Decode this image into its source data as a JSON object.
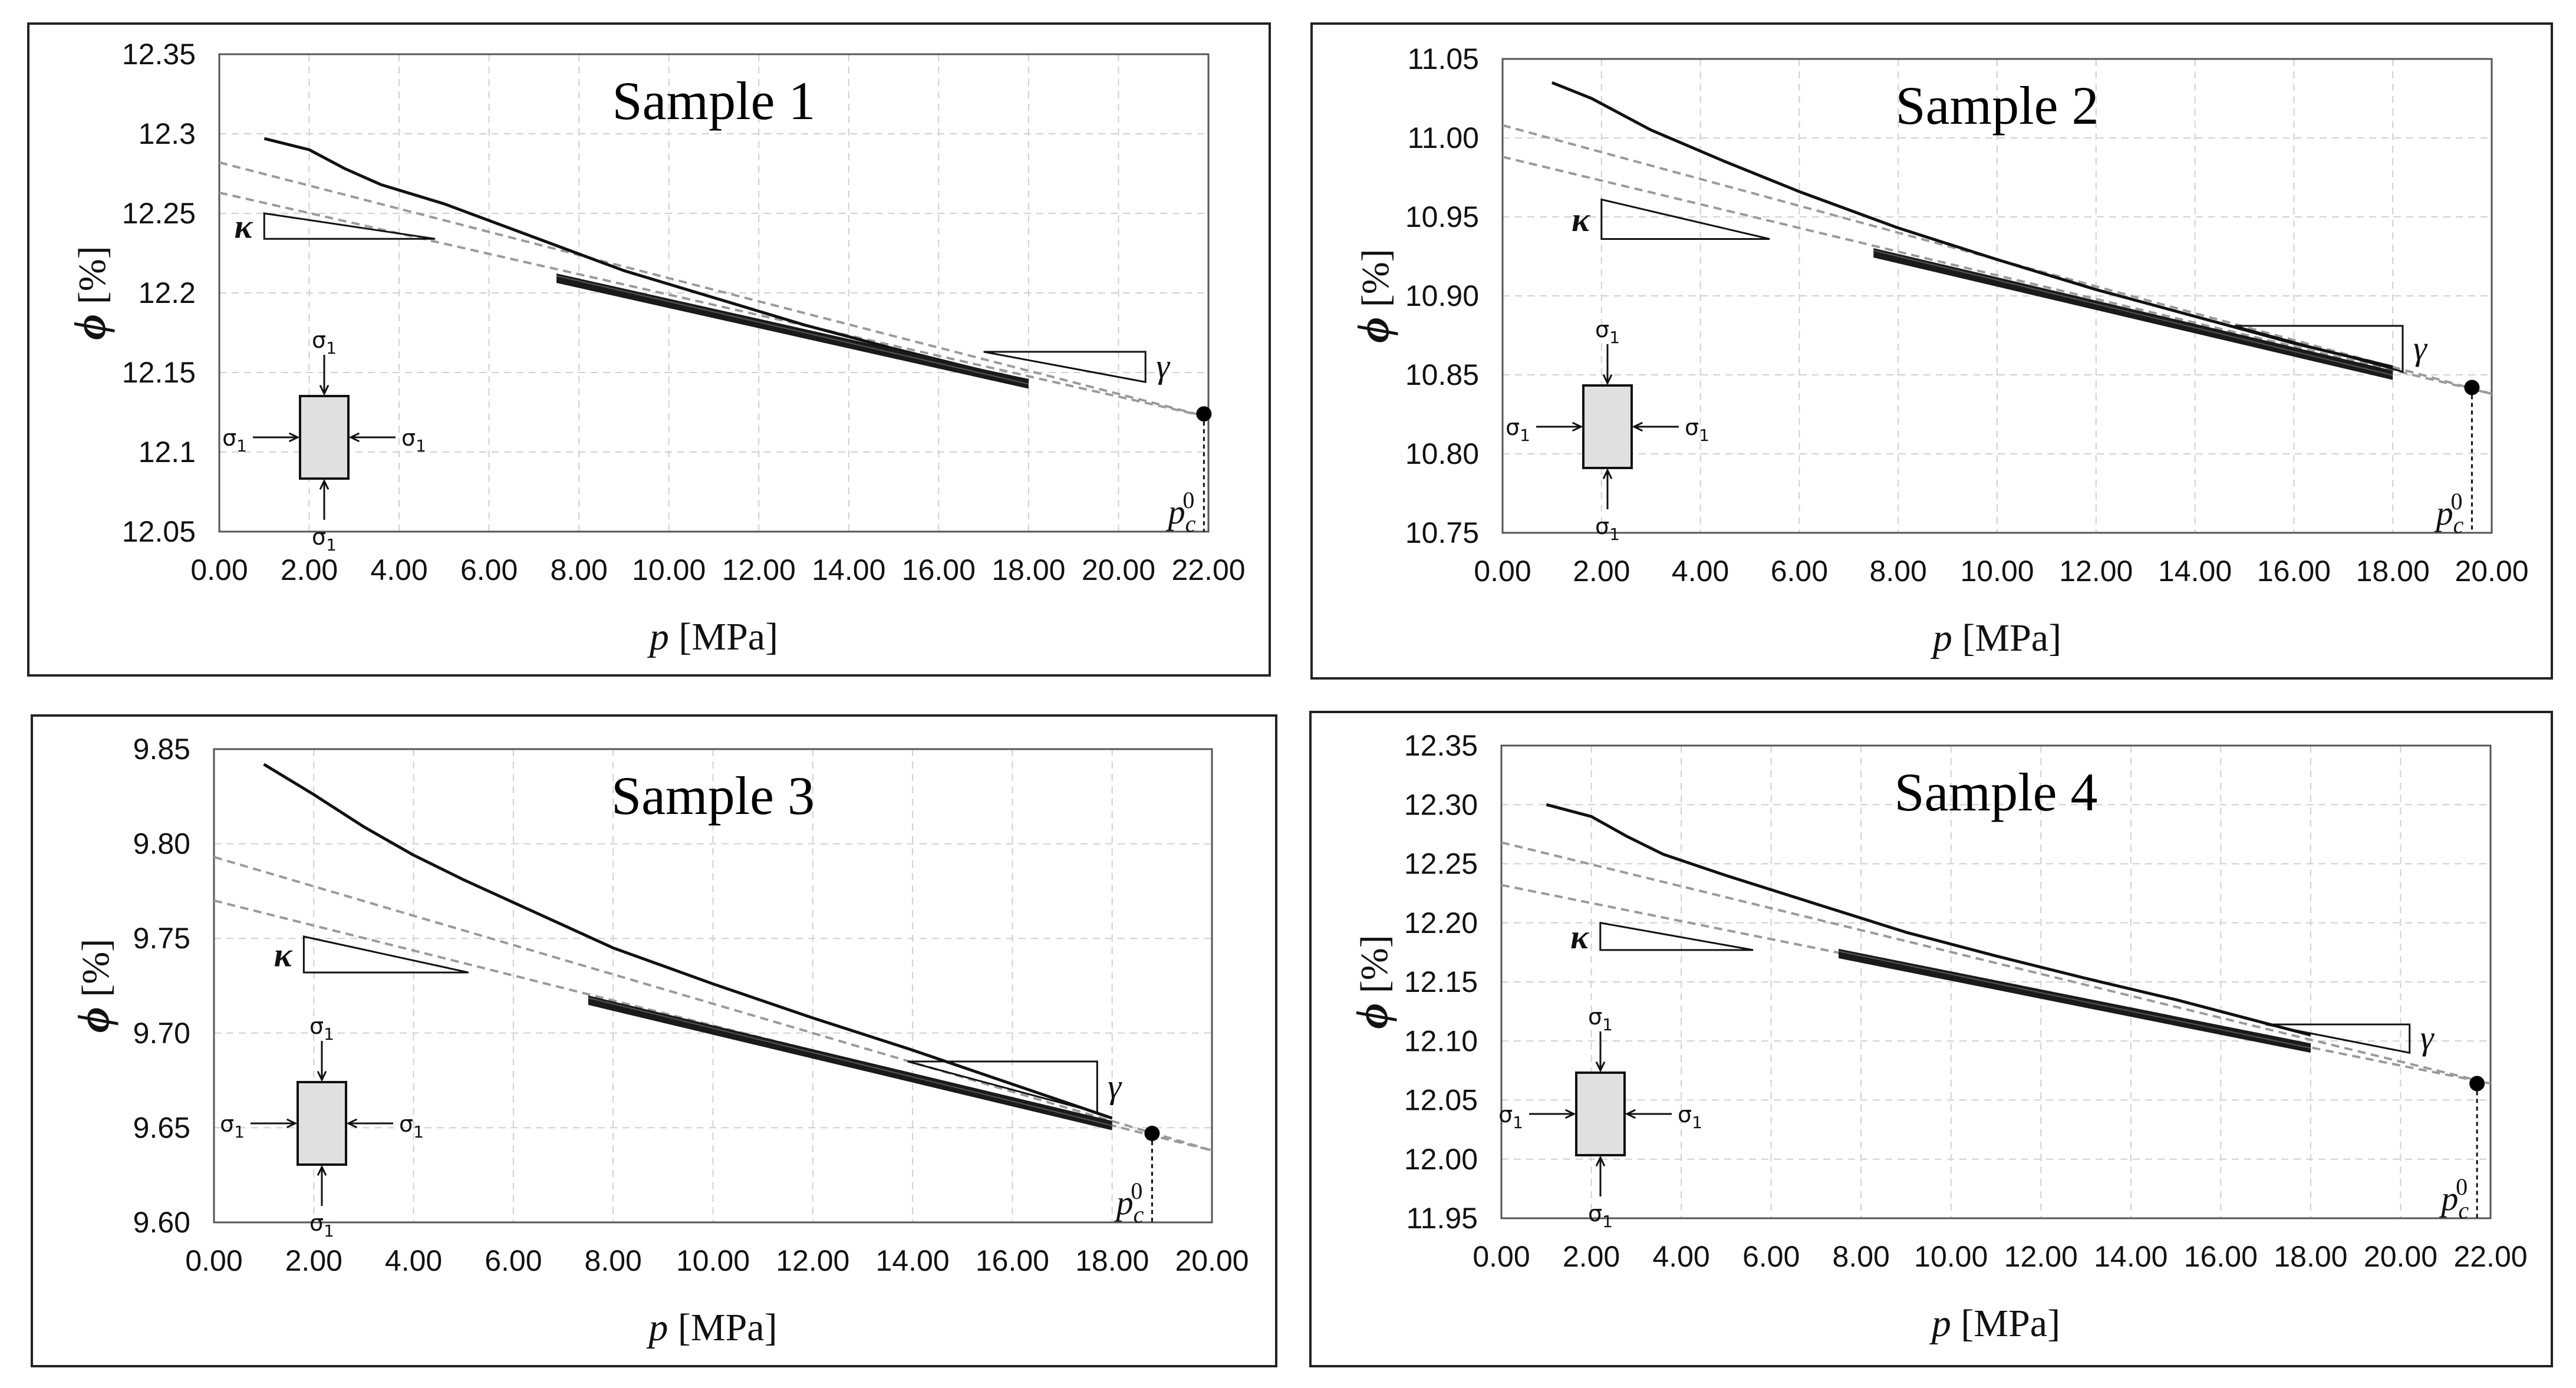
{
  "chart_data": [
    {
      "type": "line",
      "title": "Sample 1",
      "xlabel_var": "p",
      "xlabel_unit": "[MPa]",
      "ylabel_var": "ϕ",
      "ylabel_unit": "[%]",
      "xlim": [
        0,
        22
      ],
      "ylim": [
        12.05,
        12.35
      ],
      "xticks": [
        "0.00",
        "2.00",
        "4.00",
        "6.00",
        "8.00",
        "10.00",
        "12.00",
        "14.00",
        "16.00",
        "18.00",
        "20.00",
        "22.00"
      ],
      "yticks": [
        "12.05",
        "12.1",
        "12.15",
        "12.2",
        "12.25",
        "12.3",
        "12.35"
      ],
      "grid": true,
      "loading_curve": {
        "x": [
          1.0,
          2.0,
          2.8,
          3.6,
          5,
          7,
          9,
          11,
          13,
          15,
          17,
          18
        ],
        "y": [
          12.297,
          12.29,
          12.278,
          12.268,
          12.256,
          12.235,
          12.214,
          12.197,
          12.18,
          12.165,
          12.151,
          12.145
        ]
      },
      "unloading_band": {
        "x_start": 7.5,
        "x_end": 18.0,
        "y_start": 12.21,
        "y_end": 12.145
      },
      "gamma_line": {
        "x": [
          0,
          22
        ],
        "y": [
          12.282,
          12.122
        ]
      },
      "kappa_line": {
        "x": [
          0,
          22
        ],
        "y": [
          12.263,
          12.122
        ]
      },
      "kappa_triangle": {
        "x0": 1.0,
        "x1": 4.8,
        "y_top": 12.25,
        "y_bot": 12.234
      },
      "gamma_triangle": {
        "x0": 17.0,
        "x1": 20.6,
        "y_top": 12.163,
        "y_bot": 12.144
      },
      "pc0": {
        "x": 21.9,
        "y": 12.124
      },
      "labels": {
        "kappa": "κ",
        "gamma": "γ",
        "pc_base": "p",
        "pc_sub": "c",
        "pc_sup": "0"
      },
      "stress_label": "σ",
      "stress_sub": "1"
    },
    {
      "type": "line",
      "title": "Sample 2",
      "xlabel_var": "p",
      "xlabel_unit": "[MPa]",
      "ylabel_var": "ϕ",
      "ylabel_unit": "[%]",
      "xlim": [
        0,
        20
      ],
      "ylim": [
        10.75,
        11.05
      ],
      "xticks": [
        "0.00",
        "2.00",
        "4.00",
        "6.00",
        "8.00",
        "10.00",
        "12.00",
        "14.00",
        "16.00",
        "18.00",
        "20.00"
      ],
      "yticks": [
        "10.75",
        "10.80",
        "10.85",
        "10.90",
        "10.95",
        "11.00",
        "11.05"
      ],
      "grid": true,
      "loading_curve": {
        "x": [
          1.0,
          1.8,
          3,
          4.5,
          6,
          8,
          10,
          12,
          14,
          16,
          18
        ],
        "y": [
          11.035,
          11.025,
          11.005,
          10.985,
          10.966,
          10.943,
          10.923,
          10.904,
          10.887,
          10.87,
          10.855
        ]
      },
      "unloading_band": {
        "x_start": 7.5,
        "x_end": 18.0,
        "y_start": 10.928,
        "y_end": 10.852
      },
      "gamma_line": {
        "x": [
          0,
          20
        ],
        "y": [
          11.008,
          10.838
        ]
      },
      "kappa_line": {
        "x": [
          0,
          20
        ],
        "y": [
          10.988,
          10.838
        ]
      },
      "kappa_triangle": {
        "x0": 2.0,
        "x1": 5.4,
        "y_top": 10.961,
        "y_bot": 10.936
      },
      "gamma_triangle": {
        "x0": 14.8,
        "x1": 18.2,
        "y_top": 10.881,
        "y_bot": 10.852
      },
      "pc0": {
        "x": 19.6,
        "y": 10.842
      },
      "labels": {
        "kappa": "κ",
        "gamma": "γ",
        "pc_base": "p",
        "pc_sub": "c",
        "pc_sup": "0"
      },
      "stress_label": "σ",
      "stress_sub": "1"
    },
    {
      "type": "line",
      "title": "Sample 3",
      "xlabel_var": "p",
      "xlabel_unit": "[MPa]",
      "ylabel_var": "ϕ",
      "ylabel_unit": "[%]",
      "xlim": [
        0,
        20
      ],
      "ylim": [
        9.6,
        9.85
      ],
      "xticks": [
        "0.00",
        "2.00",
        "4.00",
        "6.00",
        "8.00",
        "10.00",
        "12.00",
        "14.00",
        "16.00",
        "18.00",
        "20.00"
      ],
      "yticks": [
        "9.60",
        "9.65",
        "9.70",
        "9.75",
        "9.80",
        "9.85"
      ],
      "grid": true,
      "loading_curve": {
        "x": [
          1.0,
          2,
          3,
          4,
          5,
          6,
          7,
          8,
          10,
          12,
          14,
          16,
          18
        ],
        "y": [
          9.842,
          9.826,
          9.809,
          9.794,
          9.781,
          9.769,
          9.757,
          9.745,
          9.726,
          9.708,
          9.691,
          9.673,
          9.655
        ]
      },
      "unloading_band": {
        "x_start": 7.5,
        "x_end": 18.0,
        "y_start": 9.718,
        "y_end": 9.653
      },
      "gamma_line": {
        "x": [
          0,
          20
        ],
        "y": [
          9.793,
          9.638
        ]
      },
      "kappa_line": {
        "x": [
          0,
          20
        ],
        "y": [
          9.77,
          9.638
        ]
      },
      "kappa_triangle": {
        "x0": 1.8,
        "x1": 5.1,
        "y_top": 9.751,
        "y_bot": 9.732
      },
      "gamma_triangle": {
        "x0": 13.9,
        "x1": 17.7,
        "y_top": 9.685,
        "y_bot": 9.658
      },
      "pc0": {
        "x": 18.8,
        "y": 9.647
      },
      "labels": {
        "kappa": "κ",
        "gamma": "γ",
        "pc_base": "p",
        "pc_sub": "c",
        "pc_sup": "0"
      },
      "stress_label": "σ",
      "stress_sub": "1"
    },
    {
      "type": "line",
      "title": "Sample 4",
      "xlabel_var": "p",
      "xlabel_unit": "[MPa]",
      "ylabel_var": "ϕ",
      "ylabel_unit": "[%]",
      "xlim": [
        0,
        22
      ],
      "ylim": [
        11.95,
        12.35
      ],
      "xticks": [
        "0.00",
        "2.00",
        "4.00",
        "6.00",
        "8.00",
        "10.00",
        "12.00",
        "14.00",
        "16.00",
        "18.00",
        "20.00",
        "22.00"
      ],
      "yticks": [
        "11.95",
        "12.00",
        "12.05",
        "12.10",
        "12.15",
        "12.20",
        "12.25",
        "12.30",
        "12.35"
      ],
      "grid": true,
      "loading_curve": {
        "x": [
          1.0,
          2.0,
          2.8,
          3.6,
          5,
          7,
          9,
          11,
          13,
          15,
          17,
          18
        ],
        "y": [
          12.3,
          12.29,
          12.273,
          12.258,
          12.24,
          12.216,
          12.192,
          12.172,
          12.153,
          12.135,
          12.115,
          12.105
        ]
      },
      "unloading_band": {
        "x_start": 7.5,
        "x_end": 18.0,
        "y_start": 12.175,
        "y_end": 12.097
      },
      "gamma_line": {
        "x": [
          0,
          22
        ],
        "y": [
          12.268,
          12.064
        ]
      },
      "kappa_line": {
        "x": [
          0,
          22
        ],
        "y": [
          12.232,
          12.064
        ]
      },
      "kappa_triangle": {
        "x0": 2.2,
        "x1": 5.6,
        "y_top": 12.2,
        "y_bot": 12.177
      },
      "gamma_triangle": {
        "x0": 17.0,
        "x1": 20.2,
        "y_top": 12.114,
        "y_bot": 12.09
      },
      "pc0": {
        "x": 21.7,
        "y": 12.064
      },
      "labels": {
        "kappa": "κ",
        "gamma": "γ",
        "pc_base": "p",
        "pc_sub": "c",
        "pc_sup": "0"
      },
      "stress_label": "σ",
      "stress_sub": "1"
    }
  ]
}
